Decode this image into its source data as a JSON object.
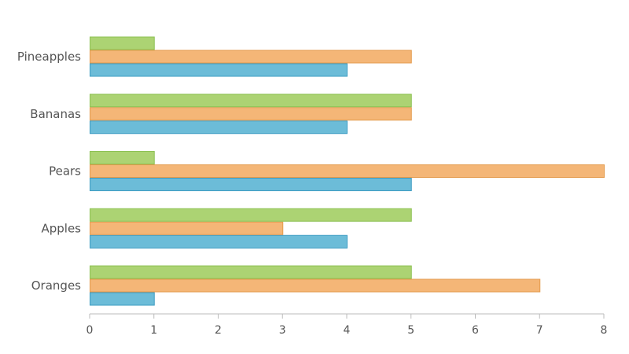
{
  "chart_data": {
    "type": "bar",
    "orientation": "horizontal",
    "categories": [
      "Oranges",
      "Apples",
      "Pears",
      "Bananas",
      "Pineapples"
    ],
    "series": [
      {
        "color": "#6cbcd8",
        "stroke": "#3d9cc2",
        "values": [
          1,
          4,
          5,
          4,
          4
        ]
      },
      {
        "color": "#f4b677",
        "stroke": "#e39a4c",
        "values": [
          7,
          3,
          8,
          5,
          5
        ]
      },
      {
        "color": "#acd373",
        "stroke": "#8cc152",
        "values": [
          5,
          5,
          1,
          5,
          1
        ]
      }
    ],
    "x_ticks": [
      "0",
      "1",
      "2",
      "3",
      "4",
      "5",
      "6",
      "7",
      "8"
    ],
    "xlim": [
      0,
      8
    ],
    "grid": false,
    "legend": "none",
    "axis_color": "#bbbbbb"
  }
}
